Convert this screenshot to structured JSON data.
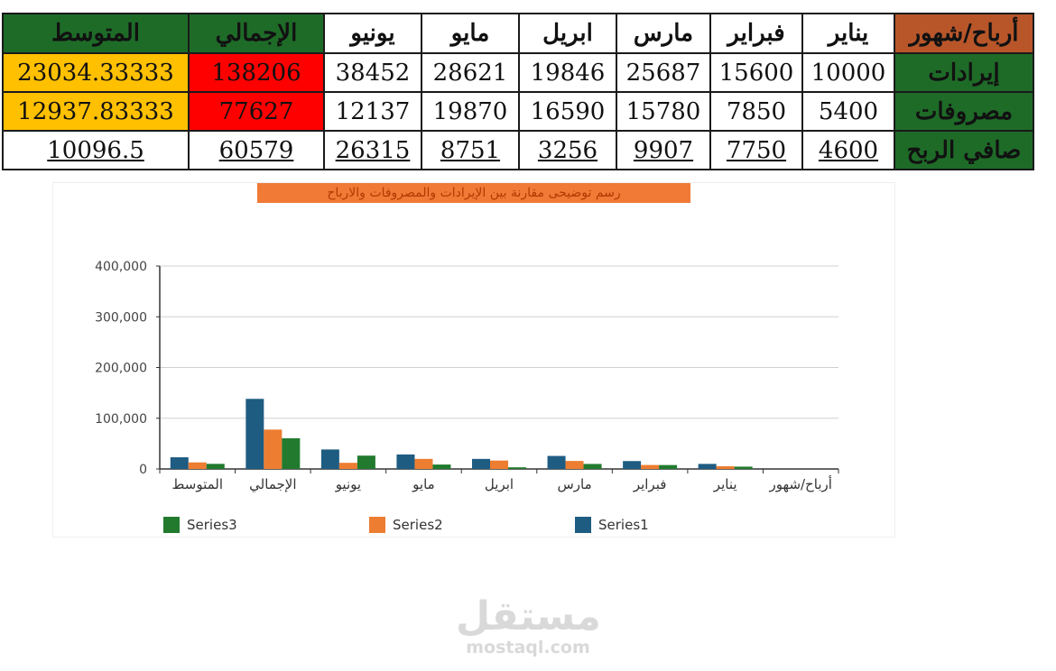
{
  "table": {
    "corner": "أرباح/شهور",
    "months": [
      "يناير",
      "فبراير",
      "مارس",
      "ابريل",
      "مايو",
      "يونيو"
    ],
    "total_header": "الإجمالي",
    "avg_header": "المتوسط",
    "rows": [
      {
        "label": "إيرادات",
        "values": [
          "10000",
          "15600",
          "25687",
          "19846",
          "28621",
          "38452"
        ],
        "total": "138206",
        "avg": "23034.33333"
      },
      {
        "label": "مصروفات",
        "values": [
          "5400",
          "7850",
          "15780",
          "16590",
          "19870",
          "12137"
        ],
        "total": "77627",
        "avg": "12937.83333"
      },
      {
        "label": "صافي الربح",
        "values": [
          "4600",
          "7750",
          "9907",
          "3256",
          "8751",
          "26315"
        ],
        "total": "60579",
        "avg": "10096.5"
      }
    ]
  },
  "chart_data": {
    "type": "bar",
    "title": "رسم توضيحى مقارنة بين الإيرادات والمصروفات والارباح",
    "categories": [
      "أرباح/شهور",
      "يناير",
      "فبراير",
      "مارس",
      "ابريل",
      "مايو",
      "يونيو",
      "الإجمالي",
      "المتوسط"
    ],
    "series": [
      {
        "name": "Series1",
        "color": "#1f5c82",
        "values": [
          0,
          10000,
          15600,
          25687,
          19846,
          28621,
          38452,
          138206,
          23034.33333
        ]
      },
      {
        "name": "Series2",
        "color": "#ed7d31",
        "values": [
          0,
          5400,
          7850,
          15780,
          16590,
          19870,
          12137,
          77627,
          12937.83333
        ]
      },
      {
        "name": "Series3",
        "color": "#217a2e",
        "values": [
          0,
          4600,
          7750,
          9907,
          3256,
          8751,
          26315,
          60579,
          10096.5
        ]
      }
    ],
    "ylim": [
      0,
      400000
    ],
    "yticks": [
      "0",
      "100,000",
      "200,000",
      "300,000",
      "400,000"
    ],
    "x_direction": "right-to-left",
    "grid": true,
    "legend": "bottom"
  },
  "watermark": {
    "arabic": "مستقل",
    "latin": "mostaql.com"
  }
}
